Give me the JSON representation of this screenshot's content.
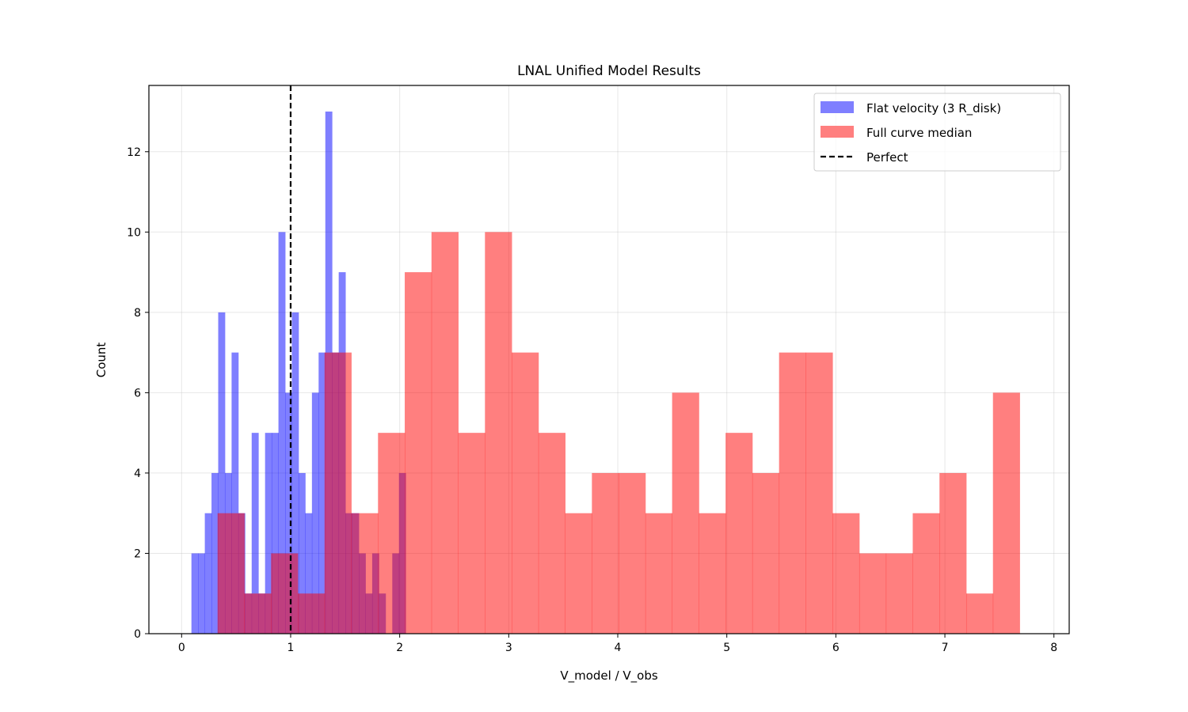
{
  "chart_data": {
    "type": "histogram",
    "title": "LNAL Unified Model Results",
    "xlabel": "V_model / V_obs",
    "ylabel": "Count",
    "xlim": [
      -0.3,
      8.14
    ],
    "ylim": [
      0,
      13.65
    ],
    "xticks": [
      0,
      1,
      2,
      3,
      4,
      5,
      6,
      7,
      8
    ],
    "yticks": [
      0,
      2,
      4,
      6,
      8,
      10,
      12
    ],
    "grid": true,
    "legend_position": "top-right",
    "reference_line": {
      "name": "Perfect",
      "x": 1.0,
      "style": "dashed",
      "color": "#000000"
    },
    "series": [
      {
        "name": "Flat velocity (3 R_disk)",
        "color": "#0000ff",
        "opacity": 0.5,
        "bin_start": 0.09,
        "bin_width": 0.0614,
        "counts": [
          2,
          2,
          3,
          4,
          8,
          4,
          7,
          3,
          1,
          5,
          1,
          5,
          5,
          10,
          6,
          8,
          4,
          3,
          6,
          7,
          13,
          7,
          9,
          3,
          3,
          2,
          1,
          2,
          1,
          0,
          2,
          4
        ]
      },
      {
        "name": "Full curve median",
        "color": "#ff0000",
        "opacity": 0.5,
        "bin_start": 0.33,
        "bin_width": 0.2452,
        "counts": [
          3,
          1,
          2,
          1,
          7,
          3,
          5,
          9,
          10,
          5,
          10,
          7,
          5,
          3,
          4,
          4,
          3,
          6,
          3,
          5,
          4,
          7,
          7,
          3,
          2,
          2,
          3,
          4,
          1,
          6
        ]
      }
    ]
  }
}
